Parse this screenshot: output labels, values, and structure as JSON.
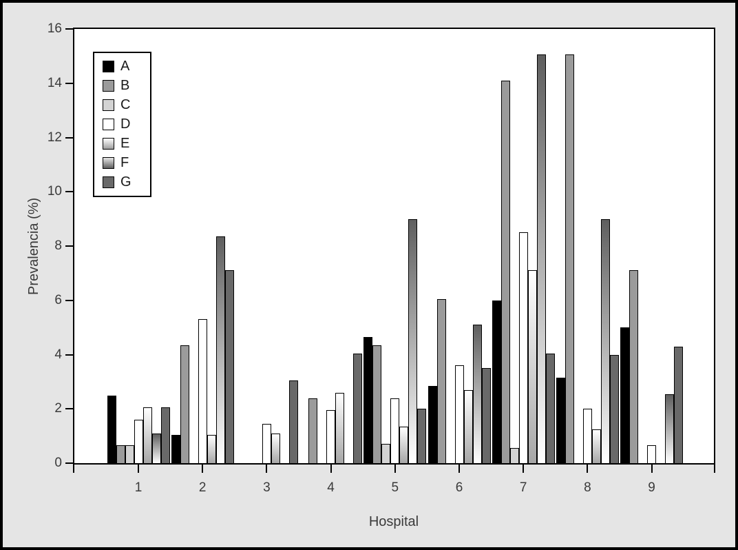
{
  "colors": {
    "background": "#e5e5e5",
    "plot_background": "#ffffff",
    "axis": "#000000",
    "tick_label": "#3a3a3a"
  },
  "chart_data": {
    "type": "bar",
    "title": "",
    "xlabel": "Hospital",
    "ylabel": "Prevalencia (%)",
    "categories": [
      "1",
      "2",
      "3",
      "4",
      "5",
      "6",
      "7",
      "8",
      "9"
    ],
    "ylim": [
      0,
      16
    ],
    "yticks": [
      0,
      2,
      4,
      6,
      8,
      10,
      12,
      14,
      16
    ],
    "grid": false,
    "legend_position": "upper-left",
    "series": [
      {
        "name": "A",
        "fill": {
          "type": "solid",
          "color": "#000000"
        },
        "values": [
          2.5,
          1.05,
          0,
          0,
          4.65,
          2.85,
          6.0,
          3.15,
          5.0
        ]
      },
      {
        "name": "B",
        "fill": {
          "type": "solid",
          "color": "#9b9b9b"
        },
        "values": [
          0.65,
          4.35,
          0,
          2.4,
          4.35,
          6.05,
          14.1,
          15.05,
          7.1
        ]
      },
      {
        "name": "C",
        "fill": {
          "type": "solid",
          "color": "#d3d3d3"
        },
        "values": [
          0.65,
          0,
          0,
          0,
          0.7,
          0,
          0.55,
          0,
          0
        ]
      },
      {
        "name": "D",
        "fill": {
          "type": "solid",
          "color": "#ffffff"
        },
        "values": [
          1.6,
          5.3,
          1.45,
          1.95,
          2.4,
          3.6,
          8.5,
          2.0,
          0.65
        ]
      },
      {
        "name": "E",
        "fill": {
          "type": "gradient",
          "from": "#ffffff",
          "to": "#a6a6a6"
        },
        "legend_fill": {
          "type": "gradient",
          "from": "#ffffff",
          "to": "#9e9e9e"
        },
        "values": [
          2.05,
          1.05,
          1.1,
          2.6,
          1.35,
          2.7,
          7.1,
          1.25,
          0
        ]
      },
      {
        "name": "F",
        "fill": {
          "type": "gradient",
          "from": "#5f5f5f",
          "to": "#ffffff"
        },
        "legend_fill": {
          "type": "gradient",
          "from": "#e8e8e8",
          "to": "#5f5f5f"
        },
        "values": [
          1.1,
          8.35,
          0,
          0,
          9.0,
          5.1,
          15.05,
          9.0,
          2.55
        ]
      },
      {
        "name": "G",
        "fill": {
          "type": "solid",
          "color": "#696969"
        },
        "values": [
          2.05,
          7.1,
          3.05,
          4.05,
          2.0,
          3.5,
          4.05,
          4.0,
          4.3
        ]
      }
    ]
  }
}
